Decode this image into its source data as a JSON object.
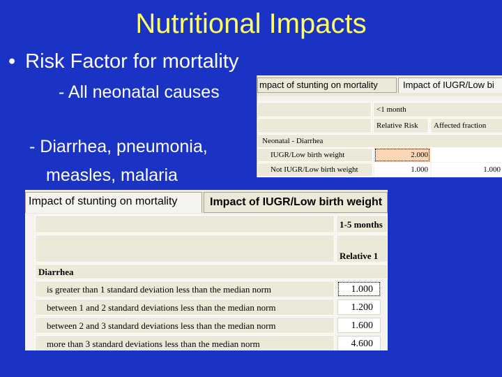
{
  "slide": {
    "title": "Nutritional Impacts",
    "bullet_text": "Risk Factor for mortality",
    "sub1": "- All neonatal causes",
    "sub2_line1": "- Diarrhea, pneumonia,",
    "sub2_line2": "measles, malaria"
  },
  "panel_small": {
    "tabs": [
      "mpact of stunting on mortality",
      "Impact of IUGR/Low bi"
    ],
    "age_header": "<1 month",
    "col_headers": [
      "Relative Risk",
      "Affected fraction"
    ],
    "section": "Neonatal - Diarrhea",
    "rows": [
      {
        "label": "IUGR/Low birth weight",
        "rr": "2.000",
        "af": ""
      },
      {
        "label": "Not IUGR/Low birth weight",
        "rr": "1.000",
        "af": "1.000"
      }
    ]
  },
  "panel_large": {
    "tabs": [
      "Impact of stunting on mortality",
      "Impact of IUGR/Low birth weight"
    ],
    "age_header": "1-5 months",
    "col_header": "Relative 1",
    "section": "Diarrhea",
    "rows": [
      {
        "label": "is greater than 1 standard deviation less than the median norm",
        "value": "1.000"
      },
      {
        "label": "between 1 and 2 standard deviations less than the median norm",
        "value": "1.200"
      },
      {
        "label": "between 2 and 3 standard deviations less than the median norm",
        "value": "1.600"
      },
      {
        "label": "more than 3 standard deviations less than the median norm",
        "value": "4.600"
      }
    ]
  },
  "colors": {
    "background": "#1a33c4",
    "title": "#ffff66",
    "text": "#ffffff",
    "highlight": "#fcd7b5"
  }
}
